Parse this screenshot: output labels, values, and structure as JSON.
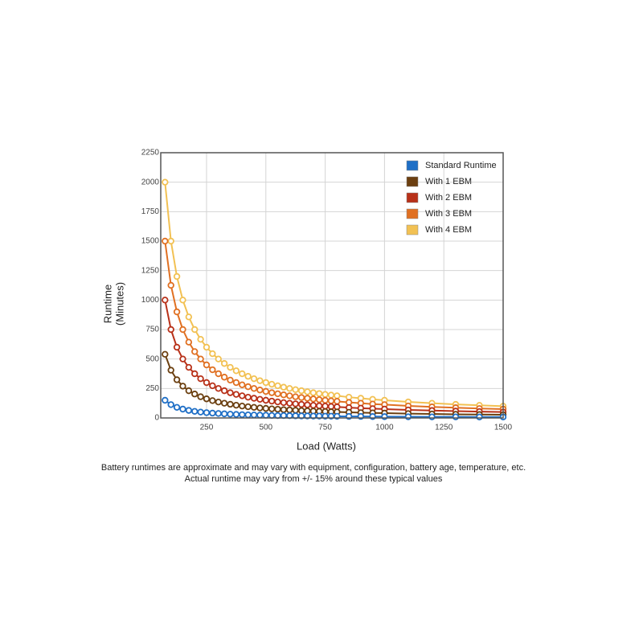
{
  "chart_data": {
    "type": "line",
    "ylabel": [
      "Runtime",
      "(Minutes)"
    ],
    "xlabel": "Load (Watts)",
    "notes": [
      "Battery runtimes are approximate and may vary with equipment, configuration, battery age, temperature, etc.",
      "Actual runtime may vary from +/- 15% around these typical values"
    ],
    "x": [
      75,
      100,
      125,
      150,
      175,
      200,
      225,
      250,
      275,
      300,
      325,
      350,
      375,
      400,
      425,
      450,
      475,
      500,
      525,
      550,
      575,
      600,
      625,
      650,
      675,
      700,
      725,
      750,
      775,
      800,
      850,
      900,
      950,
      1000,
      1100,
      1200,
      1300,
      1400,
      1500
    ],
    "series": [
      {
        "name": "Standard Runtime",
        "color": "#1f6fc6",
        "values": [
          150,
          113,
          90,
          75,
          64,
          56,
          50,
          45,
          41,
          38,
          35,
          32,
          30,
          28,
          26,
          25,
          24,
          23,
          21,
          20,
          20,
          19,
          18,
          17,
          17,
          16,
          16,
          15,
          15,
          14,
          13,
          13,
          12,
          11,
          10,
          9,
          9,
          8,
          8
        ]
      },
      {
        "name": "With 1 EBM",
        "color": "#6b3f10",
        "values": [
          540,
          405,
          324,
          270,
          231,
          203,
          180,
          162,
          147,
          135,
          125,
          116,
          108,
          101,
          95,
          90,
          85,
          81,
          77,
          74,
          70,
          68,
          65,
          62,
          60,
          58,
          56,
          54,
          52,
          51,
          48,
          45,
          43,
          41,
          37,
          34,
          31,
          29,
          27
        ]
      },
      {
        "name": "With 2 EBM",
        "color": "#b83119",
        "values": [
          1000,
          750,
          600,
          500,
          429,
          375,
          333,
          300,
          273,
          250,
          231,
          214,
          200,
          188,
          176,
          167,
          158,
          150,
          143,
          136,
          130,
          125,
          120,
          115,
          111,
          107,
          103,
          100,
          97,
          94,
          88,
          83,
          79,
          75,
          68,
          63,
          58,
          54,
          50
        ]
      },
      {
        "name": "With 3 EBM",
        "color": "#e07022",
        "values": [
          1500,
          1125,
          900,
          750,
          643,
          563,
          500,
          450,
          409,
          375,
          346,
          321,
          300,
          281,
          265,
          250,
          237,
          225,
          214,
          205,
          196,
          188,
          180,
          173,
          167,
          161,
          155,
          150,
          145,
          141,
          132,
          125,
          118,
          113,
          102,
          94,
          87,
          80,
          75
        ]
      },
      {
        "name": "With 4 EBM",
        "color": "#f2c153",
        "values": [
          2000,
          1500,
          1200,
          1000,
          857,
          750,
          667,
          600,
          545,
          500,
          462,
          429,
          400,
          375,
          353,
          333,
          316,
          300,
          286,
          273,
          261,
          250,
          240,
          231,
          222,
          214,
          207,
          200,
          194,
          188,
          176,
          167,
          158,
          150,
          136,
          125,
          115,
          107,
          100
        ]
      }
    ],
    "xlim": [
      57,
      1500
    ],
    "xticks": [
      250,
      500,
      750,
      1000,
      1250,
      1500
    ],
    "ylim": [
      0,
      2250
    ],
    "yticks": [
      0,
      250,
      500,
      750,
      1000,
      1250,
      1500,
      1750,
      2000,
      2250
    ],
    "grid": true,
    "legend": "top-right"
  }
}
